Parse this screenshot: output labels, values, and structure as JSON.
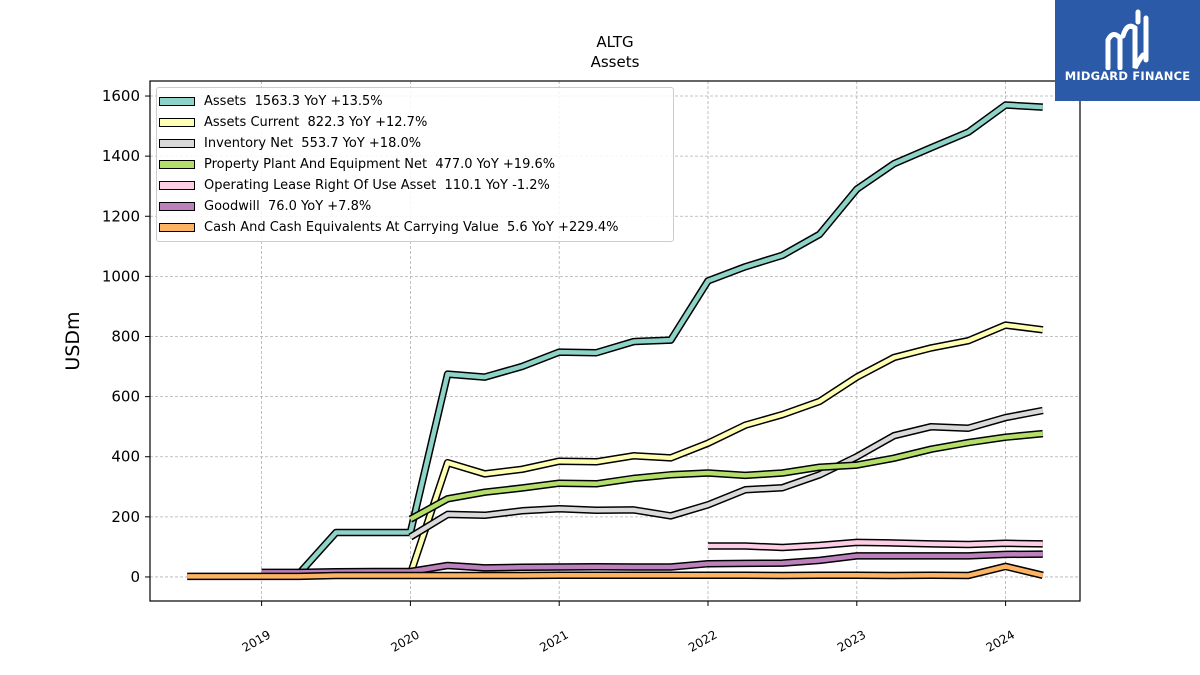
{
  "brand": {
    "name": "MIDGARD FINANCE",
    "color": "#2a5aa8"
  },
  "chart_data": {
    "type": "line",
    "title": "ALTG",
    "subtitle": "Assets",
    "xlabel": "",
    "ylabel": "USDm",
    "xlim": [
      2018.25,
      2024.5
    ],
    "ylim": [
      -80,
      1650
    ],
    "x_ticks": [
      2019,
      2020,
      2021,
      2022,
      2023,
      2024
    ],
    "y_ticks": [
      0,
      200,
      400,
      600,
      800,
      1000,
      1200,
      1400,
      1600
    ],
    "grid": true,
    "legend_position": "top-left",
    "series": [
      {
        "name": "Assets",
        "legend_label": "Assets  1563.3 YoY +13.5%",
        "color": "#8dd3c7",
        "points": [
          [
            2019.0,
            10
          ],
          [
            2019.25,
            10
          ],
          [
            2019.5,
            148
          ],
          [
            2019.75,
            148
          ],
          [
            2020.0,
            148
          ],
          [
            2020.25,
            675
          ],
          [
            2020.5,
            665
          ],
          [
            2020.75,
            700
          ],
          [
            2021.0,
            748
          ],
          [
            2021.25,
            746
          ],
          [
            2021.5,
            783
          ],
          [
            2021.75,
            788
          ],
          [
            2022.0,
            985
          ],
          [
            2022.25,
            1032
          ],
          [
            2022.5,
            1070
          ],
          [
            2022.75,
            1140
          ],
          [
            2023.0,
            1290
          ],
          [
            2023.25,
            1375
          ],
          [
            2023.5,
            1428
          ],
          [
            2023.75,
            1480
          ],
          [
            2024.0,
            1570
          ],
          [
            2024.25,
            1563.3
          ]
        ]
      },
      {
        "name": "Assets Current",
        "legend_label": "Assets Current  822.3 YoY +12.7%",
        "color": "#ffffb3",
        "points": [
          [
            2020.0,
            10
          ],
          [
            2020.25,
            380
          ],
          [
            2020.5,
            343
          ],
          [
            2020.75,
            358
          ],
          [
            2021.0,
            385
          ],
          [
            2021.25,
            383
          ],
          [
            2021.5,
            403
          ],
          [
            2021.75,
            396
          ],
          [
            2022.0,
            445
          ],
          [
            2022.25,
            505
          ],
          [
            2022.5,
            540
          ],
          [
            2022.75,
            584
          ],
          [
            2023.0,
            665
          ],
          [
            2023.25,
            730
          ],
          [
            2023.5,
            762
          ],
          [
            2023.75,
            786
          ],
          [
            2024.0,
            838
          ],
          [
            2024.25,
            822.3
          ]
        ]
      },
      {
        "name": "Inventory Net",
        "legend_label": "Inventory Net  553.7 YoY +18.0%",
        "color": "#d9d9d9",
        "points": [
          [
            2020.0,
            133
          ],
          [
            2020.25,
            208
          ],
          [
            2020.5,
            205
          ],
          [
            2020.75,
            220
          ],
          [
            2021.0,
            227
          ],
          [
            2021.25,
            222
          ],
          [
            2021.5,
            223
          ],
          [
            2021.75,
            203
          ],
          [
            2022.0,
            240
          ],
          [
            2022.25,
            290
          ],
          [
            2022.5,
            297
          ],
          [
            2022.75,
            340
          ],
          [
            2023.0,
            400
          ],
          [
            2023.25,
            470
          ],
          [
            2023.5,
            500
          ],
          [
            2023.75,
            495
          ],
          [
            2024.0,
            530
          ],
          [
            2024.25,
            553.7
          ]
        ]
      },
      {
        "name": "Property Plant And Equipment Net",
        "legend_label": "Property Plant And Equipment Net  477.0 YoY +19.6%",
        "color": "#b3de69",
        "points": [
          [
            2020.0,
            192
          ],
          [
            2020.25,
            260
          ],
          [
            2020.5,
            282
          ],
          [
            2020.75,
            296
          ],
          [
            2021.0,
            312
          ],
          [
            2021.25,
            310
          ],
          [
            2021.5,
            328
          ],
          [
            2021.75,
            340
          ],
          [
            2022.0,
            346
          ],
          [
            2022.25,
            338
          ],
          [
            2022.5,
            346
          ],
          [
            2022.75,
            365
          ],
          [
            2023.0,
            372
          ],
          [
            2023.25,
            395
          ],
          [
            2023.5,
            425
          ],
          [
            2023.75,
            447
          ],
          [
            2024.0,
            465
          ],
          [
            2024.25,
            477.0
          ]
        ]
      },
      {
        "name": "Operating Lease Right Of Use Asset",
        "legend_label": "Operating Lease Right Of Use Asset  110.1 YoY -1.2%",
        "color": "#fccde5",
        "points": [
          [
            2022.0,
            103
          ],
          [
            2022.25,
            103
          ],
          [
            2022.5,
            98
          ],
          [
            2022.75,
            105
          ],
          [
            2023.0,
            115
          ],
          [
            2023.25,
            113
          ],
          [
            2023.5,
            110
          ],
          [
            2023.75,
            108
          ],
          [
            2024.0,
            112
          ],
          [
            2024.25,
            110.1
          ]
        ]
      },
      {
        "name": "Goodwill",
        "legend_label": "Goodwill  76.0 YoY +7.8%",
        "color": "#bc80bd",
        "points": [
          [
            2019.0,
            15
          ],
          [
            2019.25,
            15
          ],
          [
            2019.5,
            17
          ],
          [
            2019.75,
            18
          ],
          [
            2020.0,
            18
          ],
          [
            2020.25,
            38
          ],
          [
            2020.5,
            30
          ],
          [
            2020.75,
            32
          ],
          [
            2021.0,
            33
          ],
          [
            2021.25,
            34
          ],
          [
            2021.5,
            33
          ],
          [
            2021.75,
            33
          ],
          [
            2022.0,
            44
          ],
          [
            2022.25,
            45
          ],
          [
            2022.5,
            46
          ],
          [
            2022.75,
            55
          ],
          [
            2023.0,
            70
          ],
          [
            2023.25,
            70
          ],
          [
            2023.5,
            70
          ],
          [
            2023.75,
            70
          ],
          [
            2024.0,
            75
          ],
          [
            2024.25,
            76.0
          ]
        ]
      },
      {
        "name": "Cash And Cash Equivalents At Carrying Value",
        "legend_label": "Cash And Cash Equivalents At Carrying Value  5.6 YoY +229.4%",
        "color": "#fdb462",
        "points": [
          [
            2018.5,
            2
          ],
          [
            2018.75,
            2
          ],
          [
            2019.0,
            2
          ],
          [
            2019.25,
            2
          ],
          [
            2019.5,
            5
          ],
          [
            2019.75,
            5
          ],
          [
            2020.0,
            5
          ],
          [
            2020.25,
            5
          ],
          [
            2020.5,
            5
          ],
          [
            2020.75,
            5
          ],
          [
            2021.0,
            6
          ],
          [
            2021.25,
            6
          ],
          [
            2021.5,
            6
          ],
          [
            2021.75,
            6
          ],
          [
            2022.0,
            6
          ],
          [
            2022.25,
            6
          ],
          [
            2022.5,
            5
          ],
          [
            2022.75,
            6
          ],
          [
            2023.0,
            6
          ],
          [
            2023.25,
            5
          ],
          [
            2023.5,
            6
          ],
          [
            2023.75,
            5
          ],
          [
            2024.0,
            35
          ],
          [
            2024.25,
            5.6
          ]
        ]
      }
    ]
  }
}
